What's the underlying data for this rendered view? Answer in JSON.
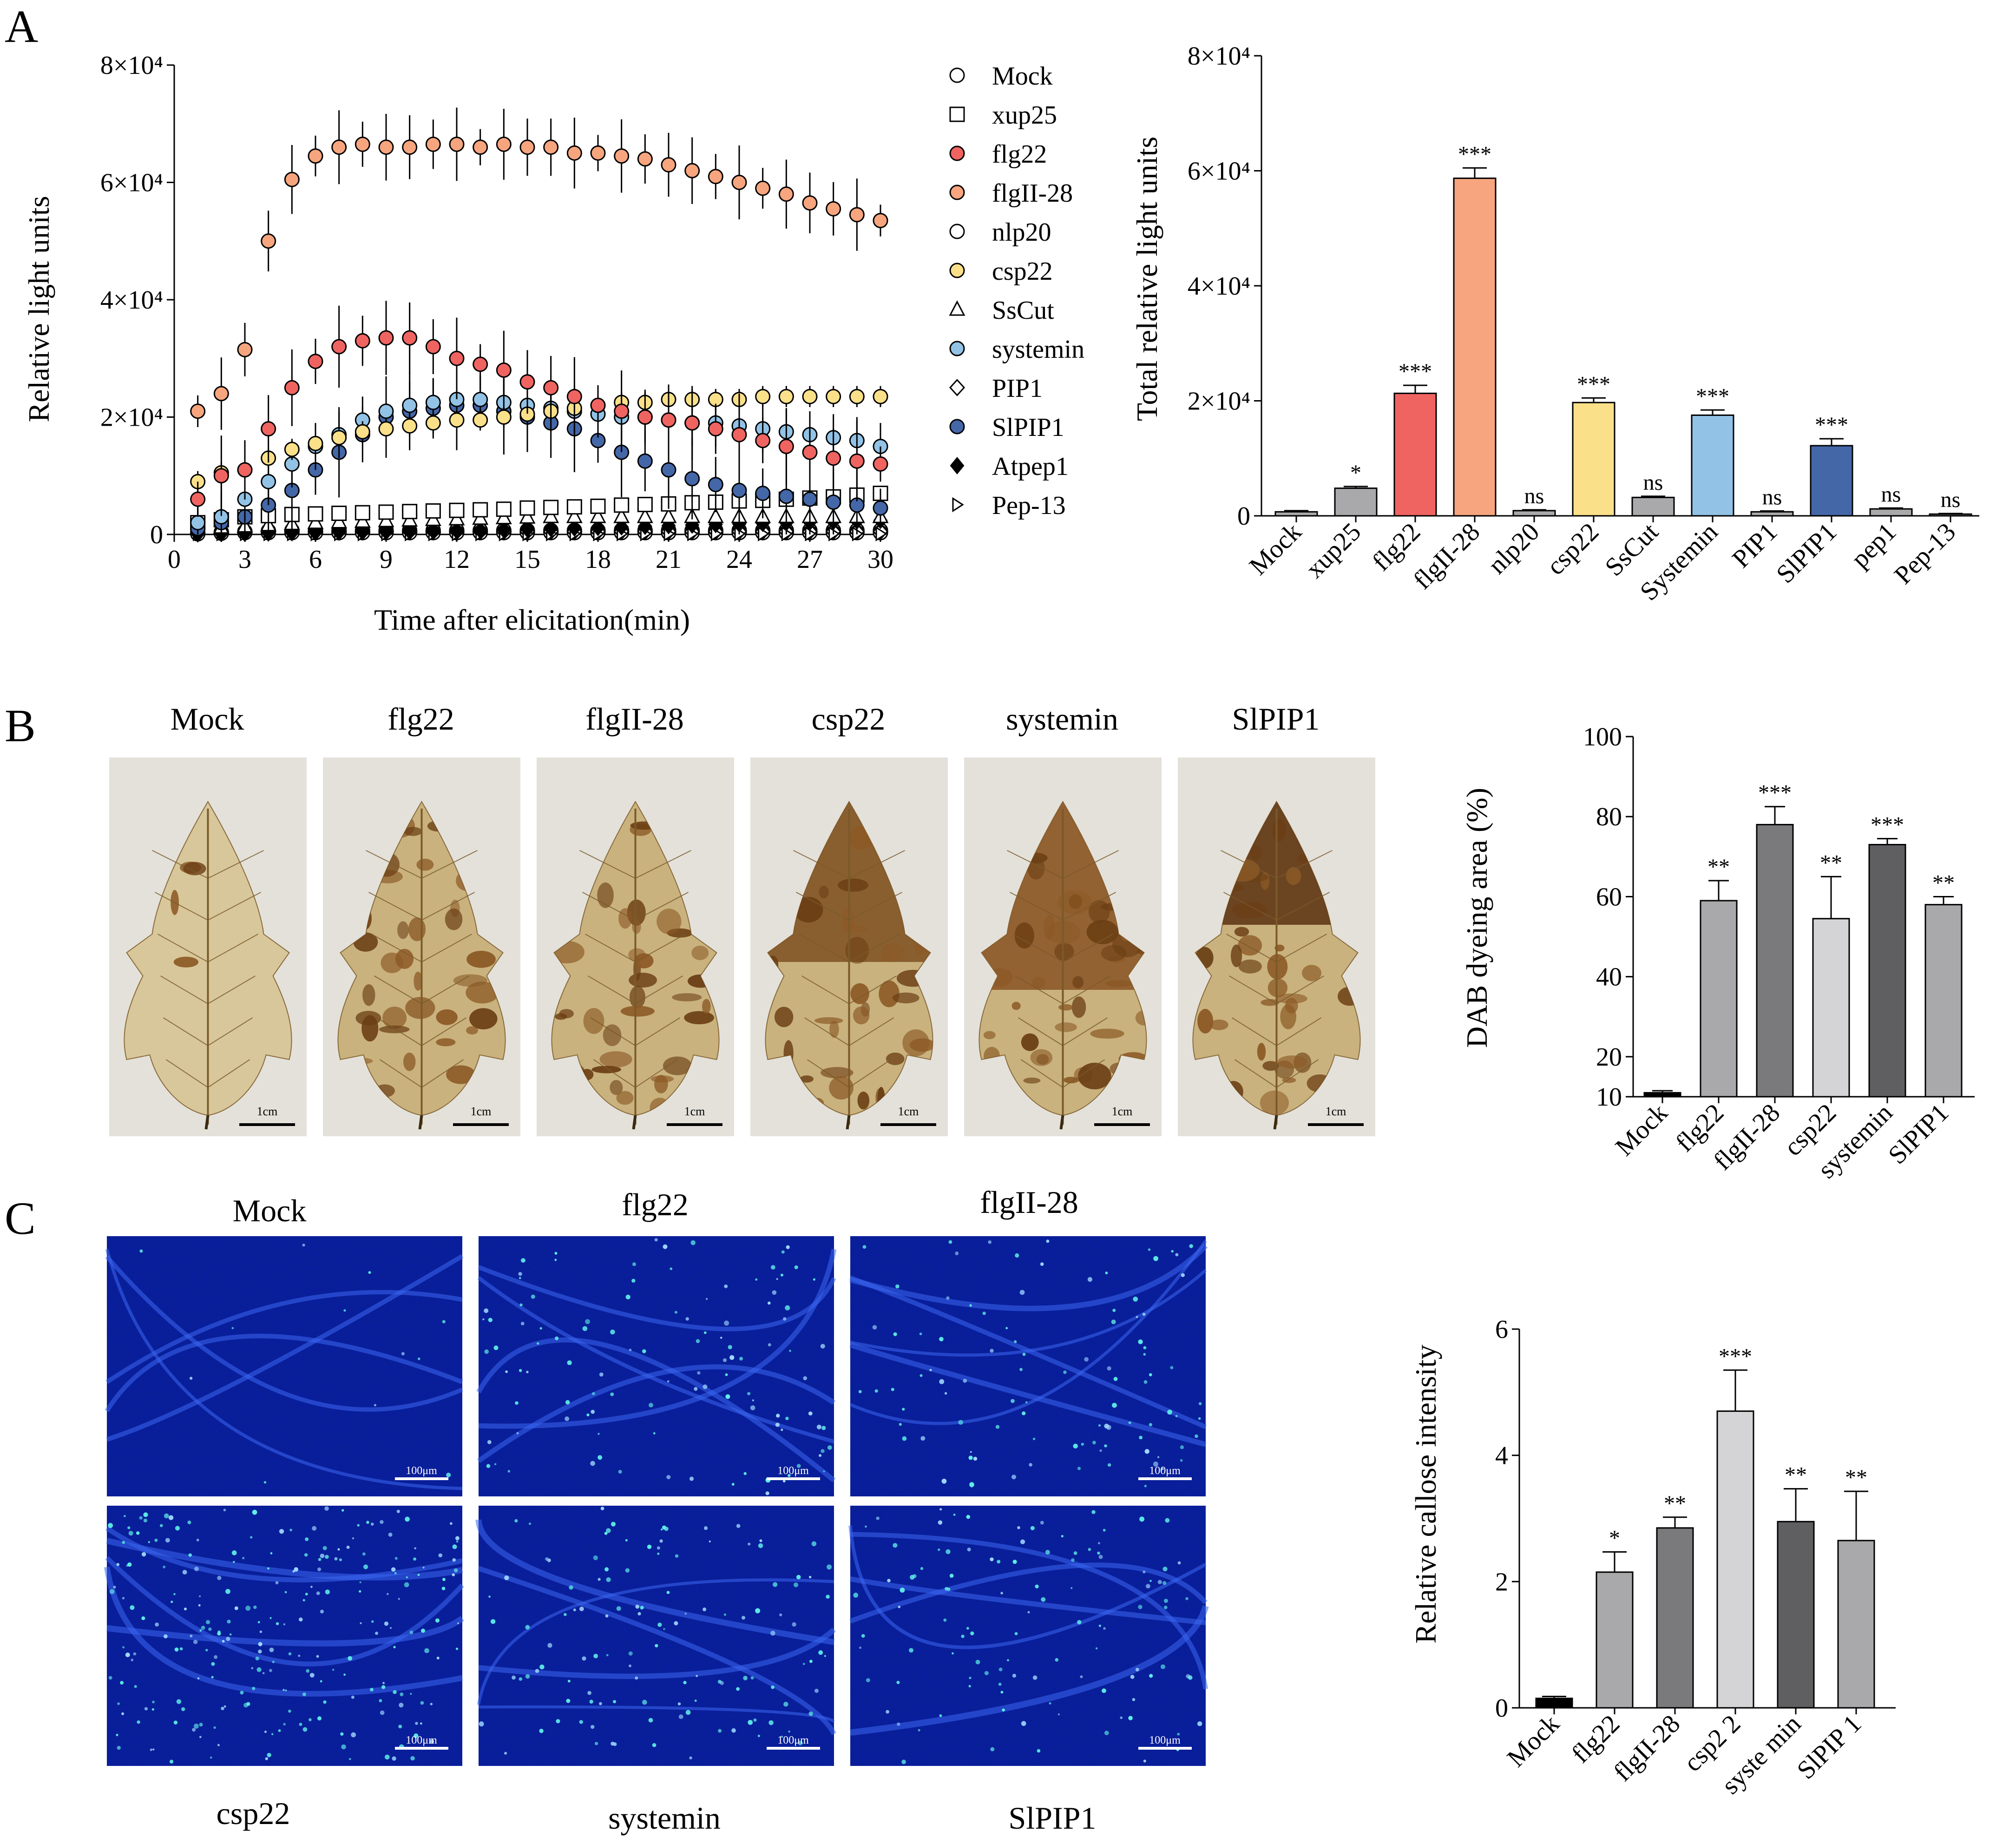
{
  "panels": {
    "A": "A",
    "B": "B",
    "C": "C"
  },
  "colors": {
    "flg22": "#ef6461",
    "flgII28": "#f6a57e",
    "csp22": "#fbe08a",
    "systemin": "#92c3e6",
    "slpip1": "#4467a8",
    "grey_bar": "#a9a9ab",
    "dark_grey": "#5f5f62",
    "light_grey": "#d4d4d6",
    "black": "#000000",
    "leaf_bg": "#e3e1da",
    "micro_bg": "#0a1c8c"
  },
  "chart_data": [
    {
      "id": "A-left",
      "type": "scatter",
      "xlabel": "Time after elicitation(min)",
      "ylabel": "Relative light units",
      "xlim": [
        0,
        30
      ],
      "ylim": [
        0,
        80000
      ],
      "xticks": [
        "0",
        "3",
        "6",
        "9",
        "12",
        "15",
        "18",
        "21",
        "24",
        "27",
        "30"
      ],
      "yticks": [
        "0",
        "2×10⁴",
        "4×10⁴",
        "6×10⁴",
        "8×10⁴"
      ],
      "x": [
        1,
        2,
        3,
        4,
        5,
        6,
        7,
        8,
        9,
        10,
        11,
        12,
        13,
        14,
        15,
        16,
        17,
        18,
        19,
        20,
        21,
        22,
        23,
        24,
        25,
        26,
        27,
        28,
        29,
        30
      ],
      "series": [
        {
          "name": "Mock",
          "marker": "circle-open",
          "color": "#ffffff",
          "values": [
            300,
            400,
            500,
            600,
            700,
            700,
            700,
            700,
            700,
            700,
            700,
            700,
            700,
            700,
            700,
            700,
            700,
            700,
            700,
            700,
            700,
            700,
            700,
            700,
            700,
            700,
            700,
            700,
            700,
            700
          ],
          "err": 300
        },
        {
          "name": "xup25",
          "marker": "square-open",
          "color": "#ffffff",
          "values": [
            2000,
            2500,
            3000,
            3200,
            3400,
            3500,
            3600,
            3700,
            3800,
            3900,
            4000,
            4100,
            4200,
            4300,
            4500,
            4600,
            4700,
            4800,
            5000,
            5100,
            5200,
            5400,
            5500,
            5700,
            5800,
            6000,
            6200,
            6400,
            6700,
            7000
          ],
          "err": 1200
        },
        {
          "name": "flg22",
          "color": "#ef6461",
          "marker": "circle",
          "values": [
            6000,
            10000,
            11000,
            18000,
            25000,
            29500,
            32000,
            33000,
            33500,
            33500,
            32000,
            30000,
            29000,
            28000,
            26000,
            25000,
            23500,
            22000,
            21000,
            20000,
            19500,
            19000,
            18000,
            17000,
            16000,
            15000,
            14000,
            13000,
            12500,
            12000
          ],
          "err": 5000
        },
        {
          "name": "flgII-28",
          "color": "#f6a57e",
          "marker": "circle",
          "values": [
            21000,
            24000,
            31500,
            50000,
            60500,
            64500,
            66000,
            66500,
            66000,
            66000,
            66500,
            66500,
            66000,
            66500,
            66000,
            66000,
            65000,
            65000,
            64500,
            64000,
            63000,
            62000,
            61000,
            60000,
            59000,
            58000,
            56500,
            55500,
            54500,
            53500
          ],
          "err": 4500
        },
        {
          "name": "nlp20",
          "marker": "circle-open",
          "color": "#ffffff",
          "values": [
            100,
            200,
            300,
            300,
            300,
            300,
            300,
            300,
            300,
            300,
            300,
            300,
            300,
            300,
            300,
            300,
            300,
            300,
            300,
            300,
            300,
            300,
            300,
            300,
            300,
            300,
            300,
            300,
            300,
            300
          ],
          "err": 200
        },
        {
          "name": "csp22",
          "color": "#fbe08a",
          "marker": "circle",
          "values": [
            9000,
            10500,
            11000,
            13000,
            14500,
            15500,
            16500,
            17500,
            18000,
            18500,
            19000,
            19500,
            19500,
            20000,
            20500,
            21000,
            21500,
            22000,
            22500,
            22500,
            23000,
            23000,
            23000,
            23000,
            23500,
            23500,
            23500,
            23500,
            23500,
            23500
          ],
          "err": 1800
        },
        {
          "name": "SsCut",
          "marker": "triangle-open",
          "color": "#ffffff",
          "values": [
            1000,
            1200,
            1400,
            1600,
            1800,
            2000,
            2100,
            2200,
            2300,
            2400,
            2500,
            2600,
            2700,
            2800,
            2900,
            3000,
            3000,
            3000,
            3000,
            3000,
            3000,
            3000,
            3000,
            3000,
            3000,
            3000,
            3000,
            3000,
            3000,
            3000
          ],
          "err": 800
        },
        {
          "name": "systemin",
          "color": "#92c3e6",
          "marker": "circle",
          "values": [
            2000,
            3000,
            6000,
            9000,
            12000,
            15000,
            17000,
            19500,
            21000,
            22000,
            22500,
            23000,
            23000,
            22500,
            22000,
            21500,
            21000,
            20500,
            20000,
            20000,
            19500,
            19000,
            19000,
            18500,
            18000,
            17500,
            17000,
            16500,
            16000,
            15000
          ],
          "err": 4000
        },
        {
          "name": "PIP1",
          "marker": "diamond-open",
          "color": "#ffffff",
          "values": [
            200,
            300,
            400,
            500,
            500,
            500,
            500,
            500,
            500,
            500,
            500,
            500,
            500,
            500,
            500,
            500,
            500,
            500,
            500,
            500,
            500,
            500,
            500,
            500,
            500,
            500,
            500,
            500,
            500,
            500
          ],
          "err": 200
        },
        {
          "name": "SlPIP1",
          "color": "#4467a8",
          "marker": "circle",
          "values": [
            1000,
            2000,
            3000,
            5000,
            7500,
            11000,
            14000,
            17000,
            20000,
            21000,
            21500,
            22000,
            22000,
            21000,
            20000,
            19000,
            18000,
            16000,
            14000,
            12500,
            11000,
            9500,
            8500,
            7500,
            7000,
            6500,
            6000,
            5500,
            5000,
            4500
          ],
          "err": 5500
        },
        {
          "name": "Atpep1",
          "marker": "diamond",
          "color": "#000000",
          "values": [
            100,
            150,
            200,
            250,
            300,
            350,
            400,
            450,
            500,
            550,
            600,
            650,
            700,
            800,
            900,
            1000,
            1100,
            1200,
            1300,
            1400,
            1500,
            1600,
            1700,
            1800,
            1900,
            2000,
            2100,
            2200,
            2300,
            2400
          ],
          "err": 400
        },
        {
          "name": "Pep-13",
          "marker": "triangle-right-open",
          "color": "#ffffff",
          "values": [
            100,
            100,
            100,
            100,
            100,
            100,
            100,
            100,
            100,
            100,
            100,
            100,
            100,
            100,
            100,
            100,
            100,
            100,
            100,
            100,
            100,
            100,
            100,
            100,
            100,
            100,
            100,
            100,
            100,
            100
          ],
          "err": 100
        }
      ]
    },
    {
      "id": "A-right",
      "type": "bar",
      "ylabel": "Total relative light units",
      "ylim": [
        0,
        80000
      ],
      "yticks": [
        "0",
        "2×10⁴",
        "4×10⁴",
        "6×10⁴",
        "8×10⁴"
      ],
      "categories": [
        "Mock",
        "xup25",
        "flg22",
        "flgII-28",
        "nlp20",
        "csp22",
        "SsCut",
        "Systemin",
        "PIP1",
        "SlPIP1",
        "pep1",
        "Pep-13"
      ],
      "values": [
        700,
        4800,
        21300,
        58700,
        900,
        19700,
        3200,
        17500,
        700,
        12200,
        1200,
        300
      ],
      "errors": [
        200,
        300,
        1400,
        1800,
        150,
        800,
        200,
        900,
        150,
        1200,
        150,
        100
      ],
      "colors": [
        "#a9a9ab",
        "#a9a9ab",
        "#ef6461",
        "#f6a57e",
        "#a9a9ab",
        "#fbe08a",
        "#a9a9ab",
        "#92c3e6",
        "#a9a9ab",
        "#4467a8",
        "#a9a9ab",
        "#a9a9ab"
      ],
      "significance": [
        "",
        "*",
        "***",
        "***",
        "ns",
        "***",
        "ns",
        "***",
        "ns",
        "***",
        "ns",
        "ns"
      ]
    },
    {
      "id": "B-right",
      "type": "bar",
      "ylabel": "DAB dyeing area (%)",
      "ylim": [
        10,
        100
      ],
      "yticks": [
        "10",
        "20",
        "40",
        "60",
        "80",
        "100"
      ],
      "categories": [
        "Mock",
        "flg22",
        "flgII-28",
        "csp22",
        "systemin",
        "SlPIP1"
      ],
      "values": [
        11,
        59,
        78,
        54.5,
        73,
        58
      ],
      "errors": [
        0.5,
        5,
        4.5,
        10.5,
        1.5,
        2
      ],
      "colors": [
        "#000000",
        "#a9a9ab",
        "#7a7a7d",
        "#d4d4d6",
        "#5f5f62",
        "#a9a9ab"
      ],
      "significance": [
        "",
        "**",
        "***",
        "**",
        "***",
        "**"
      ]
    },
    {
      "id": "C-right",
      "type": "bar",
      "ylabel": "Relative callose intensity",
      "ylim": [
        0,
        6
      ],
      "yticks": [
        "0",
        "2",
        "4",
        "6"
      ],
      "categories": [
        "Mock",
        "flg22",
        "flgII-28",
        "csp2 2",
        "syste min",
        "SlPIP 1"
      ],
      "values": [
        0.15,
        2.15,
        2.85,
        4.7,
        2.95,
        2.65
      ],
      "errors": [
        0.03,
        0.32,
        0.17,
        0.65,
        0.52,
        0.78
      ],
      "colors": [
        "#000000",
        "#a9a9ab",
        "#7a7a7d",
        "#d4d4d6",
        "#5f5f62",
        "#a9a9ab"
      ],
      "significance": [
        "",
        "*",
        "**",
        "***",
        "**",
        "**"
      ]
    }
  ],
  "leaf_images": {
    "titles": [
      "Mock",
      "flg22",
      "flgII-28",
      "csp22",
      "systemin",
      "SlPIP1"
    ],
    "scale_bar": "1cm",
    "stain_levels": [
      0.08,
      0.55,
      0.75,
      0.55,
      0.72,
      0.6
    ]
  },
  "micro_images": {
    "top_titles": [
      "Mock",
      "flg22",
      "flgII-28"
    ],
    "bottom_titles": [
      "csp22",
      "systemin",
      "SlPIP1"
    ],
    "scale_bar": "100μm",
    "spot_density": [
      0.05,
      0.45,
      0.4,
      1.0,
      0.5,
      0.45
    ]
  }
}
